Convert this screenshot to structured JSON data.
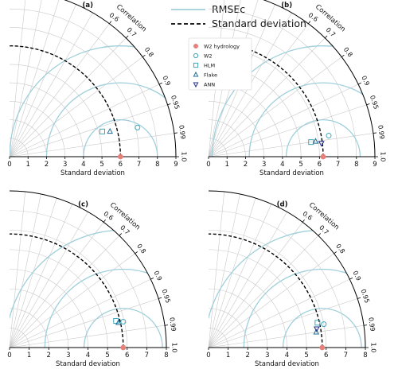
{
  "legend_top": {
    "rmse_label": "RMSEc",
    "std_label": "Standard deviation",
    "rmse_color": "#9ecfdb",
    "std_color": "#000000"
  },
  "legend_markers": [
    {
      "label": "W2 hydrology",
      "symbol": "circle-filled",
      "color": "#e8807a"
    },
    {
      "label": "W2",
      "symbol": "circle-open",
      "color": "#3fa7b8"
    },
    {
      "label": "HLM",
      "symbol": "square-open",
      "color": "#3fa7b8"
    },
    {
      "label": "Flake",
      "symbol": "triangle-up-open",
      "color": "#1f6f98"
    },
    {
      "label": "ANN",
      "symbol": "triangle-down-open",
      "color": "#1f2c8a"
    }
  ],
  "chart_data": [
    {
      "type": "taylor",
      "panel_label": "(a)",
      "xlabel": "Standard deviation",
      "corr_label": "Correlation",
      "std_max": 9,
      "std_ticks": [
        0,
        1,
        2,
        3,
        4,
        5,
        6,
        7,
        8,
        9
      ],
      "corr_ticks": [
        "0.6",
        "0.7",
        "0.8",
        "0.9",
        "0.95",
        "0.99",
        "1.0"
      ],
      "ref_std": 6.0,
      "rmse_levels": [
        2,
        4,
        6
      ],
      "points": [
        {
          "name": "W2 hydrology",
          "std": 6.0,
          "corr": 1.0
        },
        {
          "name": "W2",
          "std": 7.1,
          "corr": 0.975
        },
        {
          "name": "HLM",
          "std": 5.2,
          "corr": 0.965
        },
        {
          "name": "Flake",
          "std": 5.6,
          "corr": 0.97
        }
      ]
    },
    {
      "type": "taylor",
      "panel_label": "(b)",
      "xlabel": "Standard deviation",
      "corr_label": "Correlation",
      "std_max": 9,
      "std_ticks": [
        0,
        1,
        2,
        3,
        4,
        5,
        6,
        7,
        8,
        9
      ],
      "corr_ticks": [
        "0.6",
        "0.7",
        "0.8",
        "0.9",
        "0.95",
        "0.99",
        "1.0"
      ],
      "ref_std": 6.2,
      "rmse_levels": [
        2,
        4,
        6
      ],
      "points": [
        {
          "name": "W2 hydrology",
          "std": 6.2,
          "corr": 1.0
        },
        {
          "name": "W2",
          "std": 6.6,
          "corr": 0.985
        },
        {
          "name": "HLM",
          "std": 5.6,
          "corr": 0.99
        },
        {
          "name": "Flake",
          "std": 5.85,
          "corr": 0.99
        },
        {
          "name": "ANN",
          "std": 6.15,
          "corr": 0.993
        }
      ]
    },
    {
      "type": "taylor",
      "panel_label": "(c)",
      "xlabel": "Standard deviation",
      "corr_label": "Correlation",
      "std_max": 8,
      "std_ticks": [
        0,
        1,
        2,
        3,
        4,
        5,
        6,
        7,
        8
      ],
      "corr_ticks": [
        "0.6",
        "0.7",
        "0.8",
        "0.9",
        "0.95",
        "0.99",
        "1.0"
      ],
      "ref_std": 5.8,
      "rmse_levels": [
        2,
        4,
        6
      ],
      "points": [
        {
          "name": "W2 hydrology",
          "std": 5.8,
          "corr": 1.0
        },
        {
          "name": "W2",
          "std": 5.95,
          "corr": 0.975
        },
        {
          "name": "HLM",
          "std": 5.6,
          "corr": 0.97
        },
        {
          "name": "Flake",
          "std": 5.7,
          "corr": 0.975
        }
      ]
    },
    {
      "type": "taylor",
      "panel_label": "(d)",
      "xlabel": "Standard deviation",
      "corr_label": "Correlation",
      "std_max": 8,
      "std_ticks": [
        0,
        1,
        2,
        3,
        4,
        5,
        6,
        7,
        8
      ],
      "corr_ticks": [
        "0.6",
        "0.7",
        "0.8",
        "0.9",
        "0.95",
        "0.99",
        "1.0"
      ],
      "ref_std": 5.8,
      "rmse_levels": [
        2,
        4,
        6
      ],
      "points": [
        {
          "name": "W2 hydrology",
          "std": 5.8,
          "corr": 1.0
        },
        {
          "name": "W2",
          "std": 6.0,
          "corr": 0.98
        },
        {
          "name": "HLM",
          "std": 5.7,
          "corr": 0.975
        },
        {
          "name": "Flake",
          "std": 5.55,
          "corr": 0.99
        },
        {
          "name": "ANN",
          "std": 5.6,
          "corr": 0.985
        }
      ]
    }
  ]
}
